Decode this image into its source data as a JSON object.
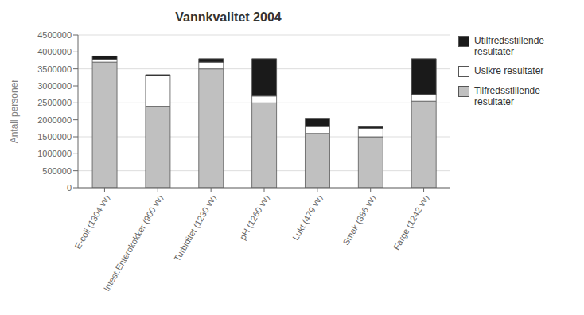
{
  "chart_data": {
    "type": "bar",
    "title": "Vannkvalitet 2004",
    "ylabel": "Antall personer",
    "categories": [
      "E-coli (1304 vv)",
      "Intest.Enterokokker (900 vv)",
      "Turbiditet (1230 vv)",
      "pH (1260 vv)",
      "Lukt (479 vv)",
      "Smak (386 vv)",
      "Farge (1242 vv)"
    ],
    "series": [
      {
        "name": "Tilfredsstillende\nresultater",
        "color": "#c0c0c0",
        "values": [
          3700000,
          2400000,
          3500000,
          2500000,
          1600000,
          1500000,
          2550000
        ]
      },
      {
        "name": "Usikre resultater",
        "color": "#ffffff",
        "values": [
          80000,
          900000,
          200000,
          200000,
          200000,
          250000,
          200000
        ]
      },
      {
        "name": "Utilfredsstillende\nresultater",
        "color": "#1a1a1a",
        "values": [
          100000,
          30000,
          100000,
          1100000,
          250000,
          50000,
          1050000
        ]
      }
    ],
    "stacked": true,
    "ylim": [
      0,
      4500000
    ],
    "yticks": [
      0,
      500000,
      1000000,
      1500000,
      2000000,
      2500000,
      3000000,
      3500000,
      4000000,
      4500000
    ],
    "grid": true,
    "legend": "right"
  }
}
